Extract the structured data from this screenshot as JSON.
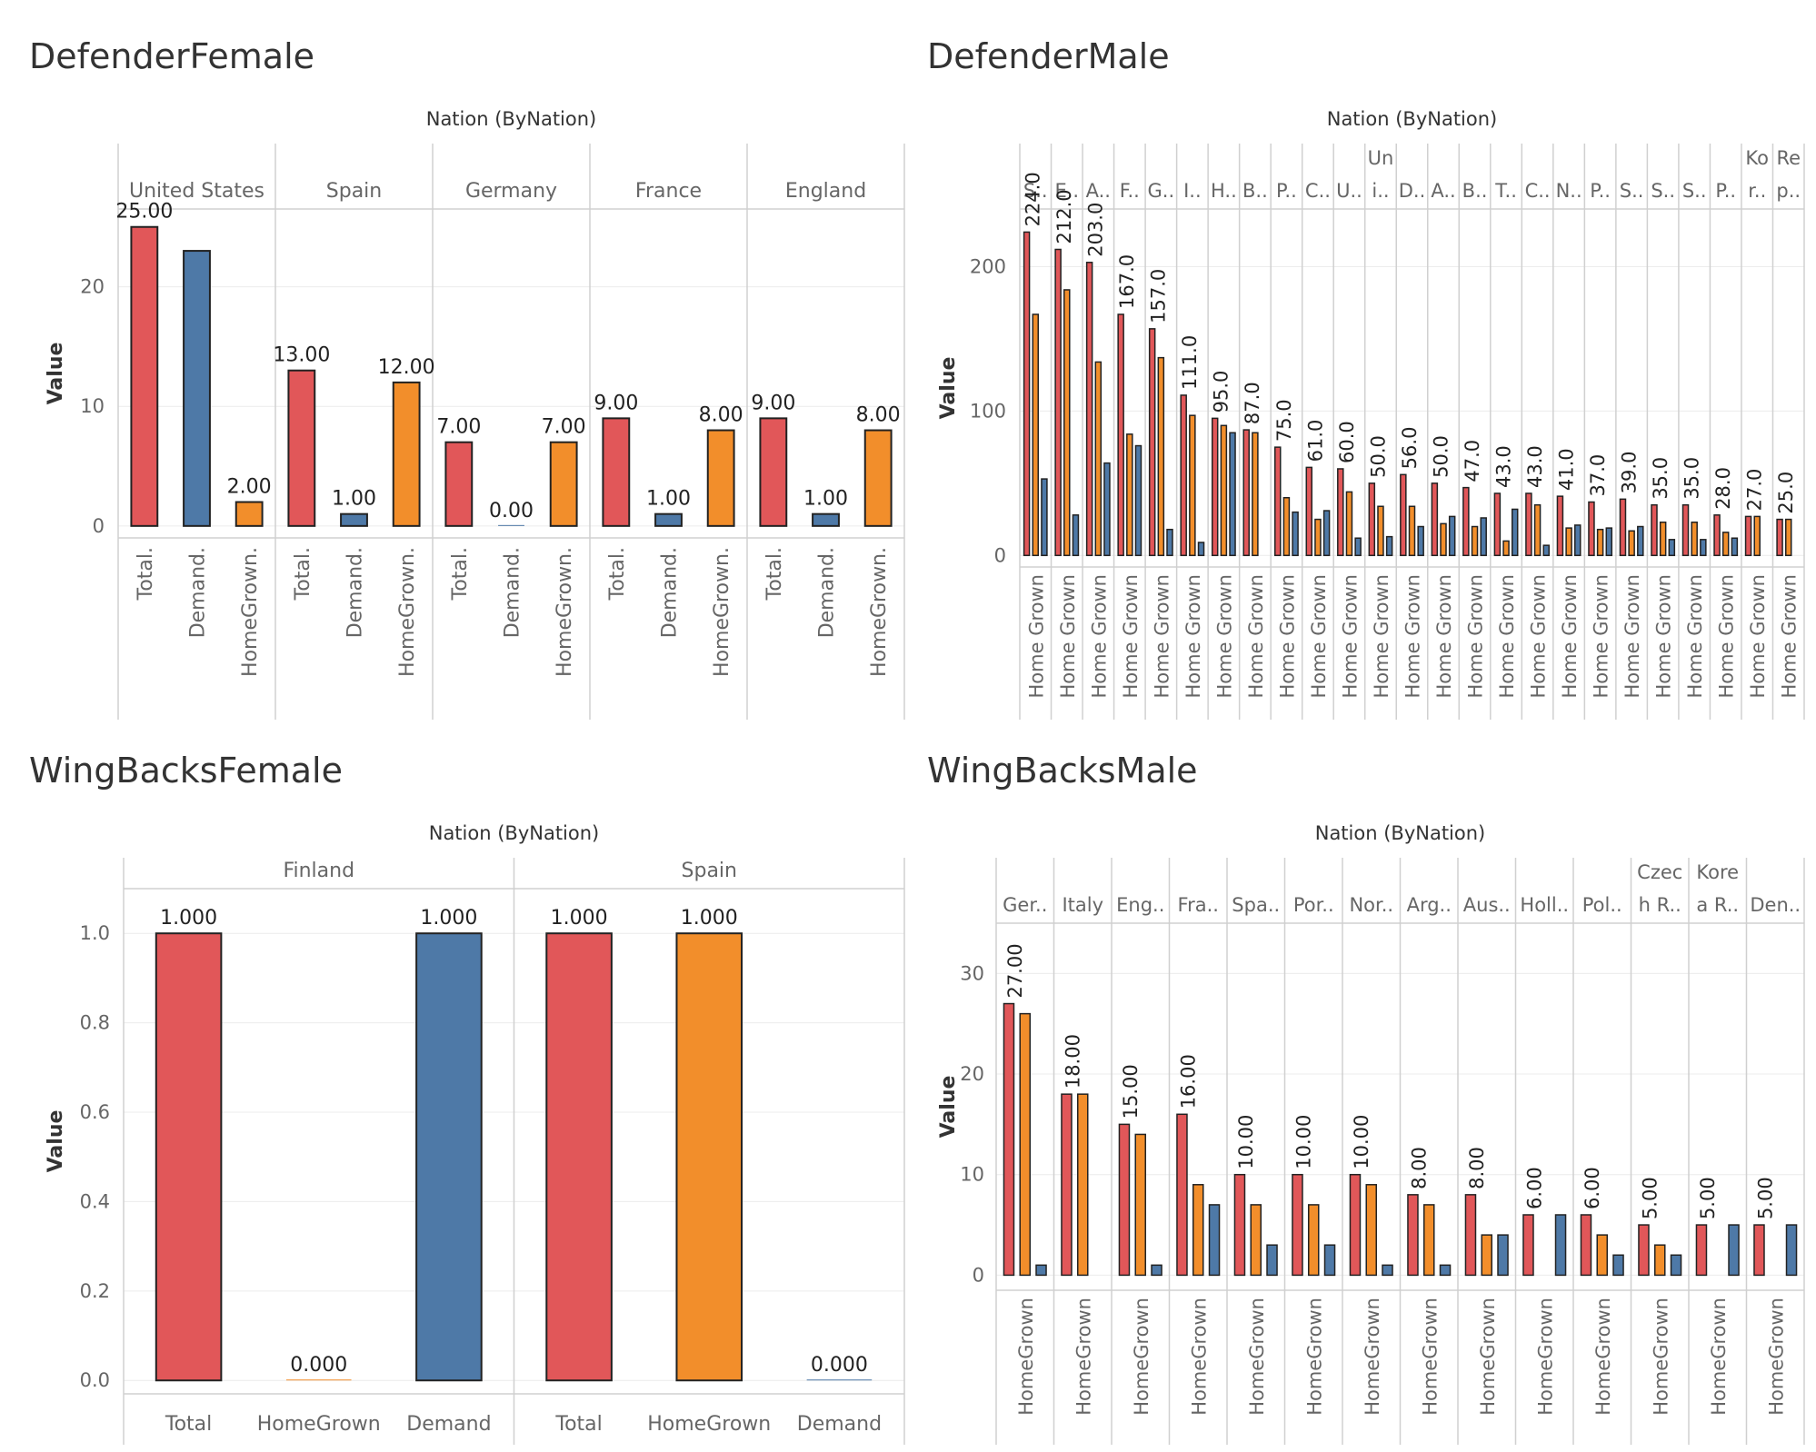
{
  "chart_data": [
    {
      "title": "DefenderFemale",
      "type": "bar",
      "header_label": "Nation (ByNation)",
      "ylabel": "Value",
      "y_ticks": [
        0,
        10,
        20
      ],
      "ylim": [
        -1,
        26.5
      ],
      "label_rotation": "horizontal",
      "groups": [
        {
          "name": "United States",
          "bars": [
            {
              "label": "Total.",
              "value": 25,
              "value_label": "25.00",
              "color": "#e15759"
            },
            {
              "label": "Demand.",
              "value": 23,
              "value_label": "",
              "color": "#4e79a7"
            },
            {
              "label": "HomeGrown.",
              "value": 2,
              "value_label": "2.00",
              "color": "#f28e2b"
            }
          ]
        },
        {
          "name": "Spain",
          "bars": [
            {
              "label": "Total.",
              "value": 13,
              "value_label": "13.00",
              "color": "#e15759"
            },
            {
              "label": "Demand.",
              "value": 1,
              "value_label": "1.00",
              "color": "#4e79a7"
            },
            {
              "label": "HomeGrown.",
              "value": 12,
              "value_label": "12.00",
              "color": "#f28e2b"
            }
          ]
        },
        {
          "name": "Germany",
          "bars": [
            {
              "label": "Total.",
              "value": 7,
              "value_label": "7.00",
              "color": "#e15759"
            },
            {
              "label": "Demand.",
              "value": 0,
              "value_label": "0.00",
              "color": "#4e79a7"
            },
            {
              "label": "HomeGrown.",
              "value": 7,
              "value_label": "7.00",
              "color": "#f28e2b"
            }
          ]
        },
        {
          "name": "France",
          "bars": [
            {
              "label": "Total.",
              "value": 9,
              "value_label": "9.00",
              "color": "#e15759"
            },
            {
              "label": "Demand.",
              "value": 1,
              "value_label": "1.00",
              "color": "#4e79a7"
            },
            {
              "label": "HomeGrown.",
              "value": 8,
              "value_label": "8.00",
              "color": "#f28e2b"
            }
          ]
        },
        {
          "name": "England",
          "bars": [
            {
              "label": "Total.",
              "value": 9,
              "value_label": "9.00",
              "color": "#e15759"
            },
            {
              "label": "Demand.",
              "value": 1,
              "value_label": "1.00",
              "color": "#4e79a7"
            },
            {
              "label": "HomeGrown.",
              "value": 8,
              "value_label": "8.00",
              "color": "#f28e2b"
            }
          ]
        }
      ]
    },
    {
      "title": "DefenderMale",
      "type": "bar",
      "header_label": "Nation (ByNation)",
      "ylabel": "Value",
      "y_ticks": [
        0,
        100,
        200
      ],
      "ylim": [
        -8,
        240
      ],
      "label_rotation": "vertical",
      "groups": [
        {
          "name": [
            "S.."
          ],
          "axis_label": "Home Grown",
          "value_label": "224.0",
          "values": [
            224,
            167,
            53
          ]
        },
        {
          "name": [
            "E.."
          ],
          "axis_label": "Home Grown",
          "value_label": "212.0",
          "values": [
            212,
            184,
            28
          ]
        },
        {
          "name": [
            "A.."
          ],
          "axis_label": "Home Grown",
          "value_label": "203.0",
          "values": [
            203,
            134,
            64
          ]
        },
        {
          "name": [
            "F.."
          ],
          "axis_label": "Home Grown",
          "value_label": "167.0",
          "values": [
            167,
            84,
            76
          ]
        },
        {
          "name": [
            "G.."
          ],
          "axis_label": "Home Grown",
          "value_label": "157.0",
          "values": [
            157,
            137,
            18
          ]
        },
        {
          "name": [
            "I.."
          ],
          "axis_label": "Home Grown",
          "value_label": "111.0",
          "values": [
            111,
            97,
            9
          ]
        },
        {
          "name": [
            "H.."
          ],
          "axis_label": "Home Grown",
          "value_label": "95.0",
          "values": [
            95,
            90,
            85
          ]
        },
        {
          "name": [
            "B.."
          ],
          "axis_label": "Home Grown",
          "value_label": "87.0",
          "values": [
            87,
            85,
            0
          ]
        },
        {
          "name": [
            "P.."
          ],
          "axis_label": "Home Grown",
          "value_label": "75.0",
          "values": [
            75,
            40,
            30
          ]
        },
        {
          "name": [
            "C.."
          ],
          "axis_label": "Home Grown",
          "value_label": "61.0",
          "values": [
            61,
            25,
            31
          ]
        },
        {
          "name": [
            "U.."
          ],
          "axis_label": "Home Grown",
          "value_label": "60.0",
          "values": [
            60,
            44,
            12
          ]
        },
        {
          "name": [
            "Un",
            "i.."
          ],
          "axis_label": "Home Grown",
          "value_label": "50.0",
          "values": [
            50,
            34,
            13
          ]
        },
        {
          "name": [
            "D.."
          ],
          "axis_label": "Home Grown",
          "value_label": "56.0",
          "values": [
            56,
            34,
            20
          ]
        },
        {
          "name": [
            "A.."
          ],
          "axis_label": "Home Grown",
          "value_label": "50.0",
          "values": [
            50,
            22,
            27
          ]
        },
        {
          "name": [
            "B.."
          ],
          "axis_label": "Home Grown",
          "value_label": "47.0",
          "values": [
            47,
            20,
            26
          ]
        },
        {
          "name": [
            "T.."
          ],
          "axis_label": "Home Grown",
          "value_label": "43.0",
          "values": [
            43,
            10,
            32
          ]
        },
        {
          "name": [
            "C.."
          ],
          "axis_label": "Home Grown",
          "value_label": "43.0",
          "values": [
            43,
            35,
            7
          ]
        },
        {
          "name": [
            "N.."
          ],
          "axis_label": "Home Grown",
          "value_label": "41.0",
          "values": [
            41,
            19,
            21
          ]
        },
        {
          "name": [
            "P.."
          ],
          "axis_label": "Home Grown",
          "value_label": "37.0",
          "values": [
            37,
            18,
            19
          ]
        },
        {
          "name": [
            "S.."
          ],
          "axis_label": "Home Grown",
          "value_label": "39.0",
          "values": [
            39,
            17,
            20
          ]
        },
        {
          "name": [
            "S.."
          ],
          "axis_label": "Home Grown",
          "value_label": "35.0",
          "values": [
            35,
            23,
            11
          ]
        },
        {
          "name": [
            "S.."
          ],
          "axis_label": "Home Grown",
          "value_label": "35.0",
          "values": [
            35,
            23,
            11
          ]
        },
        {
          "name": [
            "P.."
          ],
          "axis_label": "Home Grown",
          "value_label": "28.0",
          "values": [
            28,
            16,
            12
          ]
        },
        {
          "name": [
            "Ko",
            "r.."
          ],
          "axis_label": "Home Grown",
          "value_label": "27.0",
          "values": [
            27,
            27,
            0
          ]
        },
        {
          "name": [
            "Re",
            "p.."
          ],
          "axis_label": "Home Grown",
          "value_label": "25.0",
          "values": [
            25,
            25,
            0
          ]
        }
      ],
      "colors": [
        "#e15759",
        "#f28e2b",
        "#4e79a7"
      ]
    },
    {
      "title": "WingBacksFemale",
      "type": "bar",
      "header_label": "Nation (ByNation)",
      "ylabel": "Value",
      "y_ticks": [
        "0.0",
        "0.2",
        "0.4",
        "0.6",
        "0.8",
        "1.0"
      ],
      "ylim": [
        -0.03,
        1.1
      ],
      "label_rotation": "horizontal",
      "groups": [
        {
          "name": "Finland",
          "bars": [
            {
              "label": "Total",
              "value": 1,
              "value_label": "1.000",
              "color": "#e15759"
            },
            {
              "label": "HomeGrown",
              "value": 0,
              "value_label": "0.000",
              "color": "#f28e2b"
            },
            {
              "label": "Demand",
              "value": 1,
              "value_label": "1.000",
              "color": "#4e79a7"
            }
          ]
        },
        {
          "name": "Spain",
          "bars": [
            {
              "label": "Total",
              "value": 1,
              "value_label": "1.000",
              "color": "#e15759"
            },
            {
              "label": "HomeGrown",
              "value": 1,
              "value_label": "1.000",
              "color": "#f28e2b"
            },
            {
              "label": "Demand",
              "value": 0,
              "value_label": "0.000",
              "color": "#4e79a7"
            }
          ]
        }
      ]
    },
    {
      "title": "WingBacksMale",
      "type": "bar",
      "header_label": "Nation (ByNation)",
      "ylabel": "Value",
      "y_ticks": [
        0,
        10,
        20,
        30
      ],
      "ylim": [
        -1.5,
        35
      ],
      "label_rotation": "vertical",
      "groups": [
        {
          "name": [
            "Ger.."
          ],
          "axis_label": "HomeGrown",
          "value_label": "27.00",
          "values": [
            27,
            26,
            1
          ]
        },
        {
          "name": [
            "Italy"
          ],
          "axis_label": "HomeGrown",
          "value_label": "18.00",
          "values": [
            18,
            18,
            0
          ]
        },
        {
          "name": [
            "Eng.."
          ],
          "axis_label": "HomeGrown",
          "value_label": "15.00",
          "values": [
            15,
            14,
            1
          ]
        },
        {
          "name": [
            "Fra.."
          ],
          "axis_label": "HomeGrown",
          "value_label": "16.00",
          "values": [
            16,
            9,
            7
          ]
        },
        {
          "name": [
            "Spa.."
          ],
          "axis_label": "HomeGrown",
          "value_label": "10.00",
          "values": [
            10,
            7,
            3
          ]
        },
        {
          "name": [
            "Por.."
          ],
          "axis_label": "HomeGrown",
          "value_label": "10.00",
          "values": [
            10,
            7,
            3
          ]
        },
        {
          "name": [
            "Nor.."
          ],
          "axis_label": "HomeGrown",
          "value_label": "10.00",
          "values": [
            10,
            9,
            1
          ]
        },
        {
          "name": [
            "Arg.."
          ],
          "axis_label": "HomeGrown",
          "value_label": "8.00",
          "values": [
            8,
            7,
            1
          ]
        },
        {
          "name": [
            "Aus.."
          ],
          "axis_label": "HomeGrown",
          "value_label": "8.00",
          "values": [
            8,
            4,
            4
          ]
        },
        {
          "name": [
            "Holl.."
          ],
          "axis_label": "HomeGrown",
          "value_label": "6.00",
          "values": [
            6,
            0,
            6
          ]
        },
        {
          "name": [
            "Pol.."
          ],
          "axis_label": "HomeGrown",
          "value_label": "6.00",
          "values": [
            6,
            4,
            2
          ]
        },
        {
          "name": [
            "Czec",
            "h R.."
          ],
          "axis_label": "HomeGrown",
          "value_label": "5.00",
          "values": [
            5,
            3,
            2
          ]
        },
        {
          "name": [
            "Kore",
            "a R.."
          ],
          "axis_label": "HomeGrown",
          "value_label": "5.00",
          "values": [
            5,
            0,
            5
          ]
        },
        {
          "name": [
            "Den.."
          ],
          "axis_label": "HomeGrown",
          "value_label": "5.00",
          "values": [
            5,
            0,
            5
          ]
        }
      ],
      "colors": [
        "#e15759",
        "#f28e2b",
        "#4e79a7"
      ]
    }
  ]
}
